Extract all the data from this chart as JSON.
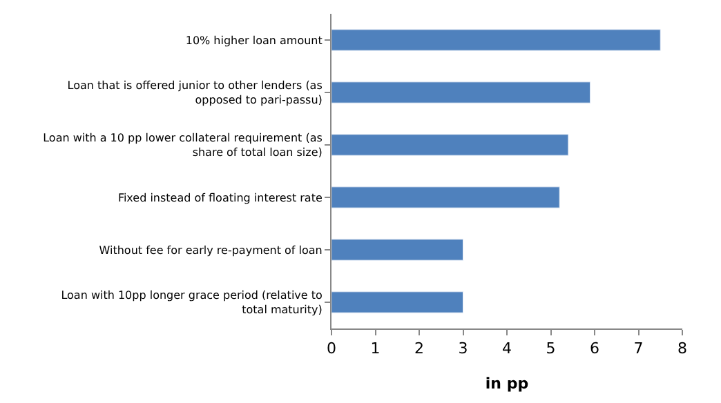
{
  "chart_data": {
    "type": "bar",
    "orientation": "horizontal",
    "xlabel": "in pp",
    "categories": [
      "10% higher loan amount",
      "Loan that is offered junior to other lenders (as opposed to pari-passu)",
      "Loan with a 10 pp lower collateral requirement (as share of total loan size)",
      "Fixed instead of floating interest rate",
      "Without fee for early re-payment of loan",
      "Loan with 10pp longer grace period (relative to total maturity)"
    ],
    "values": [
      7.5,
      5.9,
      5.4,
      5.2,
      3.0,
      3.0
    ],
    "color": "#4f81bd",
    "xlim": [
      0,
      8
    ],
    "xticks": [
      0,
      1,
      2,
      3,
      4,
      5,
      6,
      7,
      8
    ]
  }
}
